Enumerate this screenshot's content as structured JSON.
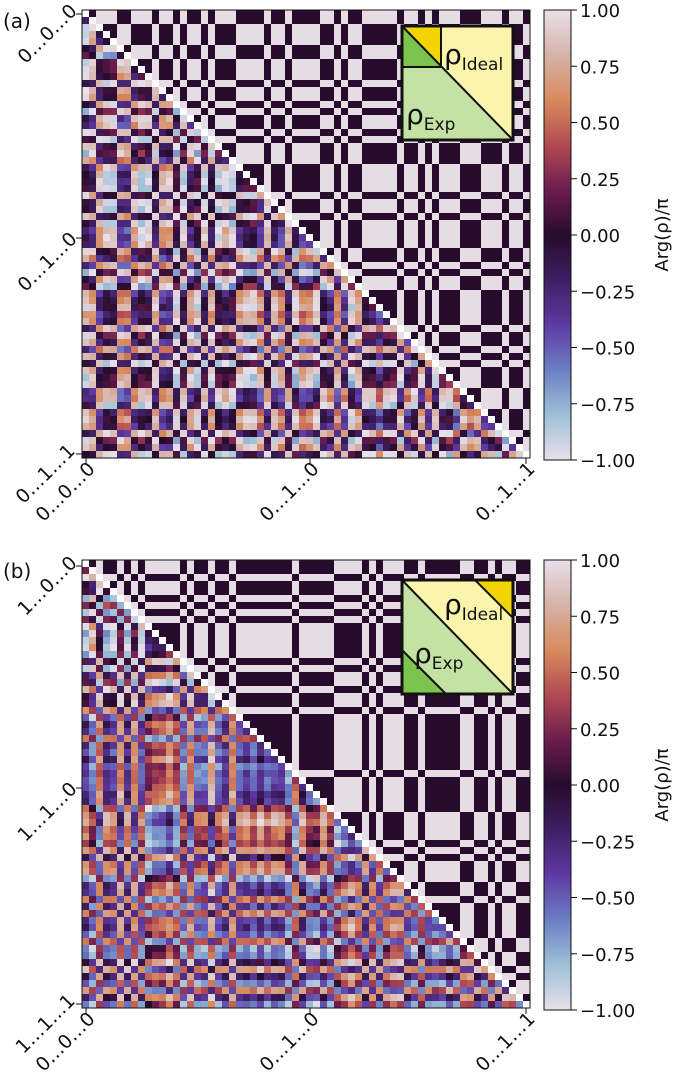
{
  "colors": {
    "cmap": [
      "#e8e0ea",
      "#d6b3a8",
      "#d88a5e",
      "#b24a52",
      "#6c1c4e",
      "#260b2c",
      "#3f1f63",
      "#5e3aa3",
      "#6b7fc4",
      "#9ec0d6",
      "#e8e0ea"
    ],
    "inset_yellow": "#f2d500",
    "inset_lightyellow": "#fbf4ad",
    "inset_green": "#7cc34f",
    "inset_lightgreen": "#c3e2a3"
  },
  "chart_data": [
    {
      "type": "heatmap",
      "panel_label": "(a)",
      "n": 64,
      "y_tick_labels": [
        "0…0…0",
        "0…1…0",
        "0…1…1"
      ],
      "x_tick_labels": [
        "0…0…0",
        "0…1…0",
        "0…1…1"
      ],
      "x_tick_label_first_line2": "0…1…1",
      "colorbar": {
        "label": "Arg(ρ)/π",
        "range": [
          -1.0,
          1.0
        ],
        "ticks": [
          "1.00",
          "0.75",
          "0.50",
          "0.25",
          "0.00",
          "−0.25",
          "−0.50",
          "−0.75",
          "−1.00"
        ]
      },
      "inset": {
        "ideal_label": "ρ",
        "ideal_sub": "Ideal",
        "exp_label": "ρ",
        "exp_sub": "Exp",
        "orientation": "top-left"
      }
    },
    {
      "type": "heatmap",
      "panel_label": "(b)",
      "n": 64,
      "y_tick_labels": [
        "1…0…0",
        "1…1…0",
        "1…1…1"
      ],
      "x_tick_labels": [
        "0…0…0",
        "0…1…0",
        "0…1…1"
      ],
      "x_tick_label_first_line2": "1…1…1",
      "colorbar": {
        "label": "Arg(ρ)/π",
        "range": [
          -1.0,
          1.0
        ],
        "ticks": [
          "1.00",
          "0.75",
          "0.50",
          "0.25",
          "0.00",
          "−0.25",
          "−0.50",
          "−0.75",
          "−1.00"
        ]
      },
      "inset": {
        "ideal_label": "ρ",
        "ideal_sub": "Ideal",
        "exp_label": "ρ",
        "exp_sub": "Exp",
        "orientation": "top-right"
      }
    }
  ]
}
